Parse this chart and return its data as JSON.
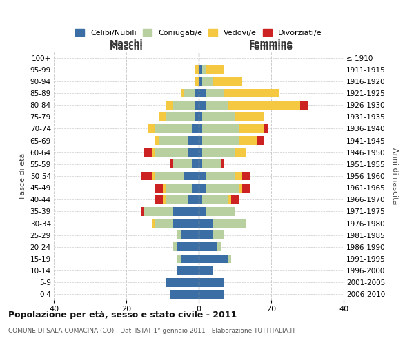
{
  "age_groups": [
    "0-4",
    "5-9",
    "10-14",
    "15-19",
    "20-24",
    "25-29",
    "30-34",
    "35-39",
    "40-44",
    "45-49",
    "50-54",
    "55-59",
    "60-64",
    "65-69",
    "70-74",
    "75-79",
    "80-84",
    "85-89",
    "90-94",
    "95-99",
    "100+"
  ],
  "birth_years": [
    "2006-2010",
    "2001-2005",
    "1996-2000",
    "1991-1995",
    "1986-1990",
    "1981-1985",
    "1976-1980",
    "1971-1975",
    "1966-1970",
    "1961-1965",
    "1956-1960",
    "1951-1955",
    "1946-1950",
    "1941-1945",
    "1936-1940",
    "1931-1935",
    "1926-1930",
    "1921-1925",
    "1916-1920",
    "1911-1915",
    "≤ 1910"
  ],
  "male": {
    "celibi": [
      8,
      9,
      6,
      5,
      6,
      5,
      7,
      7,
      3,
      2,
      4,
      2,
      3,
      3,
      2,
      1,
      1,
      1,
      0,
      0,
      0
    ],
    "coniugati": [
      0,
      0,
      0,
      1,
      1,
      1,
      5,
      8,
      6,
      7,
      8,
      5,
      9,
      8,
      10,
      8,
      6,
      3,
      0,
      0,
      0
    ],
    "vedovi": [
      0,
      0,
      0,
      0,
      0,
      0,
      1,
      0,
      1,
      1,
      1,
      0,
      1,
      1,
      2,
      2,
      2,
      1,
      1,
      1,
      0
    ],
    "divorziati": [
      0,
      0,
      0,
      0,
      0,
      0,
      0,
      1,
      2,
      2,
      3,
      1,
      2,
      0,
      0,
      0,
      0,
      0,
      0,
      0,
      0
    ]
  },
  "female": {
    "nubili": [
      7,
      7,
      4,
      8,
      5,
      4,
      4,
      2,
      1,
      2,
      2,
      1,
      1,
      1,
      1,
      1,
      2,
      2,
      1,
      1,
      0
    ],
    "coniugate": [
      0,
      0,
      0,
      1,
      1,
      3,
      9,
      8,
      7,
      9,
      8,
      5,
      9,
      10,
      10,
      9,
      6,
      5,
      3,
      1,
      0
    ],
    "vedove": [
      0,
      0,
      0,
      0,
      0,
      0,
      0,
      0,
      1,
      1,
      2,
      0,
      3,
      5,
      7,
      8,
      20,
      15,
      8,
      5,
      0
    ],
    "divorziate": [
      0,
      0,
      0,
      0,
      0,
      0,
      0,
      0,
      2,
      2,
      2,
      1,
      0,
      2,
      1,
      0,
      2,
      0,
      0,
      0,
      0
    ]
  },
  "colors": {
    "celibi_nubili": "#3a6ea5",
    "coniugati": "#b8cfa0",
    "vedovi": "#f5c842",
    "divorziati": "#cc2222"
  },
  "xlim": [
    -40,
    40
  ],
  "xticks": [
    -40,
    -20,
    0,
    20,
    40
  ],
  "xticklabels": [
    "40",
    "20",
    "0",
    "20",
    "40"
  ],
  "title": "Popolazione per età, sesso e stato civile - 2011",
  "subtitle": "COMUNE DI SALA COMACINA (CO) - Dati ISTAT 1° gennaio 2011 - Elaborazione TUTTITALIA.IT",
  "ylabel_left": "Fasce di età",
  "ylabel_right": "Anni di nascita",
  "label_maschi": "Maschi",
  "label_femmine": "Femmine",
  "legend_labels": [
    "Celibi/Nubili",
    "Coniugati/e",
    "Vedovi/e",
    "Divorziati/e"
  ],
  "bg_color": "#ffffff",
  "grid_color": "#cccccc"
}
